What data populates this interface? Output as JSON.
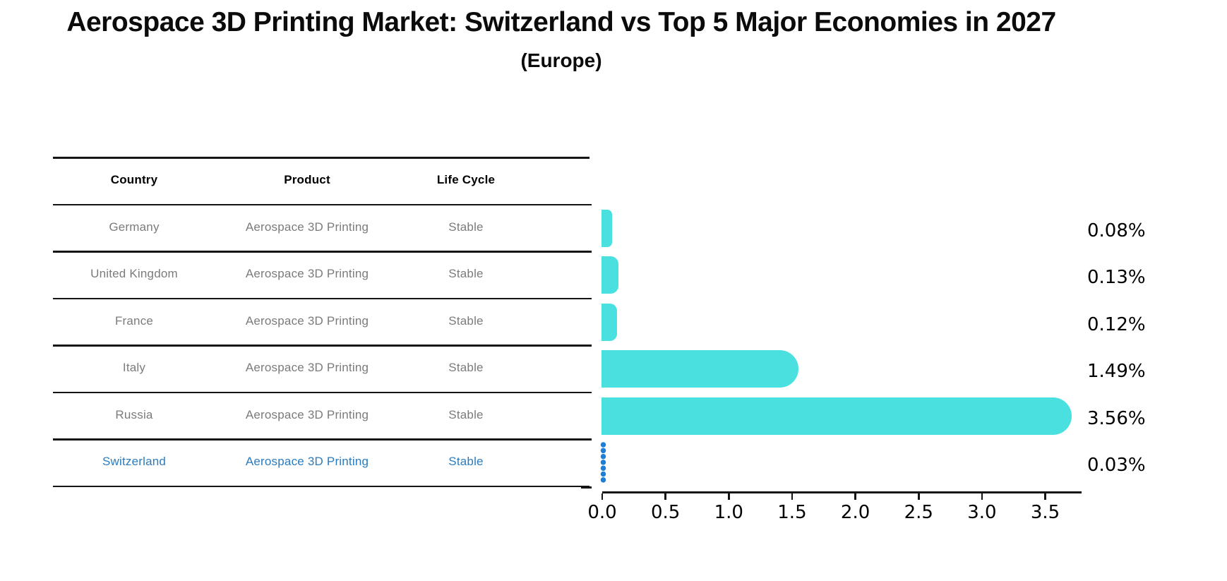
{
  "title": "Aerospace 3D Printing Market: Switzerland vs Top 5 Major Economies in 2027",
  "subtitle": "(Europe)",
  "table": {
    "headers": [
      "Country",
      "Product",
      "Life Cycle"
    ],
    "rows": [
      {
        "country": "Germany",
        "product": "Aerospace 3D Printing",
        "life_cycle": "Stable",
        "highlighted": false
      },
      {
        "country": "United Kingdom",
        "product": "Aerospace 3D Printing",
        "life_cycle": "Stable",
        "highlighted": false
      },
      {
        "country": "France",
        "product": "Aerospace 3D Printing",
        "life_cycle": "Stable",
        "highlighted": false
      },
      {
        "country": "Italy",
        "product": "Aerospace 3D Printing",
        "life_cycle": "Stable",
        "highlighted": false
      },
      {
        "country": "Russia",
        "product": "Aerospace 3D Printing",
        "life_cycle": "Stable",
        "highlighted": false
      },
      {
        "country": "Switzerland",
        "product": "Aerospace 3D Printing",
        "life_cycle": "Stable",
        "highlighted": true
      }
    ]
  },
  "chart_data": {
    "type": "bar",
    "orientation": "horizontal",
    "title": "Aerospace 3D Printing Market: Switzerland vs Top 5 Major Economies in 2027 (Europe)",
    "categories": [
      "Germany",
      "United Kingdom",
      "France",
      "Italy",
      "Russia",
      "Switzerland"
    ],
    "values": [
      0.08,
      0.13,
      0.12,
      1.49,
      3.56,
      0.03
    ],
    "value_labels": [
      "0.08%",
      "0.13%",
      "0.12%",
      "1.49%",
      "3.56%",
      "0.03%"
    ],
    "x_ticks": [
      "0.0",
      "0.5",
      "1.0",
      "1.5",
      "2.0",
      "2.5",
      "3.0",
      "3.5"
    ],
    "xlim": [
      0,
      3.78
    ],
    "grid": false,
    "legend": "none",
    "bar_color": "#4be0e0",
    "highlight_marker": "dotted-vertical-line",
    "highlight_color": "#1e7fd6",
    "highlight_text_color": "#2b7cbe"
  }
}
